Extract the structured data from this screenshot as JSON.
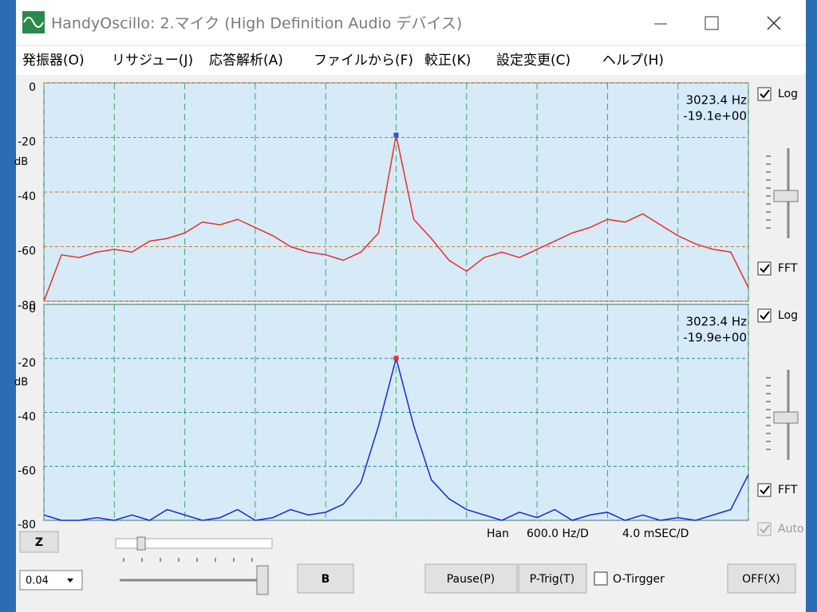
{
  "window": {
    "title": "HandyOscillo:  2.マイク (High Definition Audio デバイス)",
    "menu": [
      "発振器(O)",
      "リサジュー(J)",
      "応答解析(A)",
      "ファイルから(F)",
      "較正(K)",
      "設定変更(C)",
      "ヘルプ(H)"
    ]
  },
  "chart_data": [
    {
      "type": "line",
      "y_label": "dB",
      "annotations": [
        "3023.4  Hz",
        "-19.1e+00"
      ],
      "x": [
        0,
        150,
        300,
        450,
        600,
        750,
        900,
        1050,
        1200,
        1350,
        1500,
        1650,
        1800,
        1950,
        2100,
        2250,
        2400,
        2550,
        2700,
        2850,
        3000,
        3150,
        3300,
        3450,
        3600,
        3750,
        3900,
        4050,
        4200,
        4350,
        4500,
        4650,
        4800,
        4950,
        5100,
        5250,
        5400,
        5550,
        5700,
        5850,
        6000
      ],
      "series": [
        {
          "color": "#e53228",
          "values": [
            -80,
            -63,
            -64,
            -62,
            -61,
            -62,
            -58,
            -57,
            -55,
            -51,
            -52,
            -50,
            -53,
            -56,
            -60,
            -62,
            -63,
            -65,
            -62,
            -55,
            -19.1,
            -50,
            -57,
            -65,
            -69,
            -64,
            -62,
            -64,
            -61,
            -58,
            -55,
            -53,
            -50,
            -51,
            -48,
            -52,
            -56,
            -59,
            -61,
            -62,
            -75
          ]
        }
      ],
      "peak_marker_color": "#3050d0",
      "xlim": [
        0,
        6000
      ],
      "xticks": [
        0,
        600,
        1200,
        1800,
        2400,
        3000,
        3600,
        4200,
        4800,
        5400,
        6000
      ],
      "ylim": [
        -80,
        0
      ],
      "yticks": [
        0,
        -20,
        -40,
        -60,
        -80
      ],
      "grid": true,
      "hgrid_color": "#c8782e",
      "vgrid_color": "#3aa86a"
    },
    {
      "type": "line",
      "y_label": "dB",
      "annotations": [
        "3023.4  Hz",
        "-19.9e+00"
      ],
      "x": [
        0,
        150,
        300,
        450,
        600,
        750,
        900,
        1050,
        1200,
        1350,
        1500,
        1650,
        1800,
        1950,
        2100,
        2250,
        2400,
        2550,
        2700,
        2850,
        3000,
        3150,
        3300,
        3450,
        3600,
        3750,
        3900,
        4050,
        4200,
        4350,
        4500,
        4650,
        4800,
        4950,
        5100,
        5250,
        5400,
        5550,
        5700,
        5850,
        6000
      ],
      "series": [
        {
          "color": "#1a2ad0",
          "values": [
            -78,
            -80,
            -80,
            -79,
            -80,
            -78,
            -80,
            -76,
            -78,
            -80,
            -79,
            -76,
            -80,
            -79,
            -76,
            -78,
            -77,
            -74,
            -66,
            -45,
            -19.9,
            -45,
            -65,
            -72,
            -76,
            -78,
            -80,
            -77,
            -79,
            -76,
            -80,
            -78,
            -77,
            -80,
            -78,
            -80,
            -79,
            -80,
            -78,
            -76,
            -63
          ]
        }
      ],
      "peak_marker_color": "#e53228",
      "xlim": [
        0,
        6000
      ],
      "xticks": [
        0,
        600,
        1200,
        1800,
        2400,
        3000,
        3600,
        4200,
        4800,
        5400,
        6000
      ],
      "ylim": [
        -80,
        0
      ],
      "yticks": [
        0,
        -20,
        -40,
        -60,
        -80
      ],
      "grid": true,
      "hgrid_color": "#2a8a8a",
      "vgrid_color": "#3aa86a"
    }
  ],
  "side_panels": [
    {
      "log": "Log",
      "fft": "FFT"
    },
    {
      "log": "Log",
      "fft": "FFT",
      "auto": "Auto"
    }
  ],
  "controls": {
    "z_button": "Z",
    "zoom_select": "0.04",
    "b_button": "B",
    "pause_button": "Pause(P)",
    "ptrig_button": "P-Trig(T)",
    "otrigger": "O-Tirgger",
    "off_button": "OFF(X)"
  },
  "status": {
    "window_fn": "Han",
    "freq_div": "600.0 Hz/D",
    "time_div": "4.0  mSEC/D"
  }
}
